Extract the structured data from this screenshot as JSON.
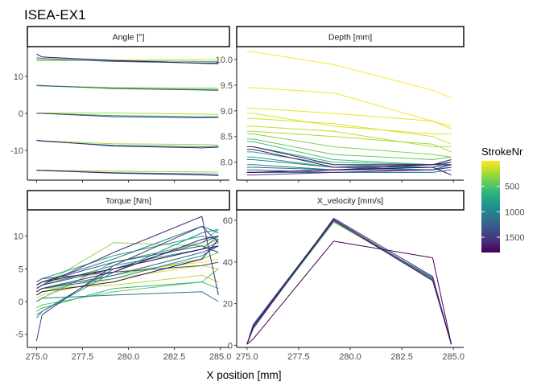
{
  "chart_data": {
    "type": "line",
    "title": "ISEA-EX1",
    "xlabel": "X position [mm]",
    "x_ticks": [
      275.0,
      277.5,
      280.0,
      282.5,
      285.0
    ],
    "x_tick_labels": [
      "275.0",
      "277.5",
      "280.0",
      "282.5",
      "285.0"
    ],
    "xlim": [
      274.5,
      285.5
    ],
    "x_samples": [
      275.0,
      275.3,
      279.2,
      284.0,
      284.9
    ],
    "grid": false,
    "legend": {
      "title": "StrokeNr",
      "position": "right",
      "type": "colorbar",
      "range": [
        1,
        1800
      ],
      "ticks": [
        500,
        1000,
        1500
      ],
      "tick_labels": [
        "500",
        "1000",
        "1500"
      ],
      "colormap": "viridis",
      "reversed": true,
      "colors": [
        "#fde725",
        "#b5de2b",
        "#6ece58",
        "#35b779",
        "#1f9e89",
        "#26828e",
        "#31688e",
        "#3e4989",
        "#482878",
        "#440154"
      ]
    },
    "facets": [
      {
        "strip": "Angle [°]",
        "ylim": [
          -18,
          18
        ],
        "y_ticks": [
          -10,
          0,
          10
        ],
        "y_tick_labels": [
          "-10",
          "0",
          "10"
        ],
        "series": [
          {
            "stroke": 100,
            "y": [
              14.2,
              14.2,
              14.4,
              14.5,
              14.5
            ]
          },
          {
            "stroke": 600,
            "y": [
              14.5,
              14.4,
              14.2,
              14.0,
              14.0
            ]
          },
          {
            "stroke": 1200,
            "y": [
              15.0,
              14.8,
              14.0,
              13.6,
              13.6
            ]
          },
          {
            "stroke": 1750,
            "y": [
              16.0,
              15.2,
              14.3,
              13.5,
              13.4
            ]
          },
          {
            "stroke": 150,
            "y": [
              7.4,
              7.4,
              7.0,
              6.9,
              6.9
            ]
          },
          {
            "stroke": 700,
            "y": [
              7.5,
              7.4,
              6.8,
              6.5,
              6.5
            ]
          },
          {
            "stroke": 1300,
            "y": [
              7.6,
              7.5,
              6.7,
              6.3,
              6.2
            ]
          },
          {
            "stroke": 200,
            "y": [
              0.1,
              0.1,
              0.1,
              -0.2,
              -0.3
            ]
          },
          {
            "stroke": 800,
            "y": [
              0.0,
              0.0,
              -0.6,
              -0.9,
              -0.9
            ]
          },
          {
            "stroke": 1450,
            "y": [
              0.0,
              0.0,
              -0.9,
              -1.2,
              -1.1
            ]
          },
          {
            "stroke": 250,
            "y": [
              -7.3,
              -7.4,
              -8.2,
              -8.4,
              -8.5
            ]
          },
          {
            "stroke": 900,
            "y": [
              -7.3,
              -7.5,
              -8.6,
              -9.0,
              -8.9
            ]
          },
          {
            "stroke": 1600,
            "y": [
              -7.2,
              -7.4,
              -8.8,
              -9.3,
              -9.1
            ]
          },
          {
            "stroke": 300,
            "y": [
              -15.3,
              -15.3,
              -15.6,
              -15.8,
              -15.8
            ]
          },
          {
            "stroke": 1000,
            "y": [
              -15.3,
              -15.4,
              -16.0,
              -16.3,
              -16.4
            ]
          },
          {
            "stroke": 1700,
            "y": [
              -15.3,
              -15.4,
              -16.1,
              -16.6,
              -16.8
            ]
          }
        ]
      },
      {
        "strip": "Depth [mm]",
        "ylim": [
          7.65,
          10.25
        ],
        "y_ticks": [
          8.0,
          8.5,
          9.0,
          9.5,
          10.0
        ],
        "y_tick_labels": [
          "8.0",
          "8.5",
          "9.0",
          "9.5",
          "10.0"
        ],
        "series": [
          {
            "stroke": 10,
            "y": [
              10.15,
              10.15,
              9.9,
              9.4,
              9.25
            ]
          },
          {
            "stroke": 30,
            "y": [
              9.45,
              9.45,
              9.35,
              8.8,
              8.7
            ]
          },
          {
            "stroke": 60,
            "y": [
              9.05,
              9.05,
              8.95,
              8.8,
              8.65
            ]
          },
          {
            "stroke": 90,
            "y": [
              8.95,
              8.95,
              8.7,
              8.55,
              8.55
            ]
          },
          {
            "stroke": 120,
            "y": [
              8.85,
              8.85,
              8.75,
              8.5,
              8.35
            ]
          },
          {
            "stroke": 180,
            "y": [
              8.7,
              8.7,
              8.6,
              8.3,
              8.3
            ]
          },
          {
            "stroke": 250,
            "y": [
              8.6,
              8.6,
              8.5,
              8.35,
              8.2
            ]
          },
          {
            "stroke": 350,
            "y": [
              8.55,
              8.55,
              8.3,
              8.15,
              8.1
            ]
          },
          {
            "stroke": 450,
            "y": [
              8.45,
              8.45,
              8.15,
              8.05,
              8.1
            ]
          },
          {
            "stroke": 550,
            "y": [
              8.4,
              8.4,
              8.05,
              7.95,
              8.05
            ]
          },
          {
            "stroke": 650,
            "y": [
              8.3,
              8.3,
              8.0,
              7.95,
              8.05
            ]
          },
          {
            "stroke": 750,
            "y": [
              8.2,
              8.2,
              7.95,
              7.9,
              8.0
            ]
          },
          {
            "stroke": 850,
            "y": [
              8.1,
              8.1,
              7.9,
              7.9,
              7.95
            ]
          },
          {
            "stroke": 950,
            "y": [
              8.05,
              8.05,
              7.9,
              7.85,
              7.95
            ]
          },
          {
            "stroke": 1050,
            "y": [
              7.95,
              7.95,
              7.85,
              7.85,
              7.9
            ]
          },
          {
            "stroke": 1150,
            "y": [
              7.9,
              7.9,
              7.85,
              7.85,
              7.9
            ]
          },
          {
            "stroke": 1250,
            "y": [
              7.85,
              7.85,
              7.8,
              7.8,
              7.85
            ]
          },
          {
            "stroke": 1350,
            "y": [
              7.8,
              7.8,
              7.8,
              7.85,
              7.9
            ]
          },
          {
            "stroke": 1450,
            "y": [
              7.75,
              7.75,
              7.8,
              7.85,
              7.95
            ]
          },
          {
            "stroke": 1550,
            "y": [
              7.8,
              7.8,
              7.85,
              7.95,
              8.05
            ]
          },
          {
            "stroke": 1650,
            "y": [
              8.3,
              8.3,
              7.95,
              7.95,
              8.0
            ]
          },
          {
            "stroke": 1720,
            "y": [
              8.25,
              8.25,
              7.9,
              7.95,
              7.95
            ]
          },
          {
            "stroke": 1780,
            "y": [
              7.8,
              7.8,
              7.85,
              7.9,
              7.75
            ]
          }
        ]
      },
      {
        "strip": "Torque [Nm]",
        "ylim": [
          -7,
          14
        ],
        "y_ticks": [
          -5,
          0,
          5,
          10
        ],
        "y_tick_labels": [
          "-5",
          "0",
          "5",
          "10"
        ],
        "series": [
          {
            "stroke": 40,
            "y": [
              2.5,
              3.0,
              4.5,
              6.0,
              6.5
            ]
          },
          {
            "stroke": 120,
            "y": [
              0.5,
              1.0,
              3.5,
              5.5,
              5.0
            ]
          },
          {
            "stroke": 200,
            "y": [
              1.5,
              2.0,
              2.5,
              4.0,
              3.0
            ]
          },
          {
            "stroke": 300,
            "y": [
              2.0,
              2.5,
              9.0,
              8.5,
              9.5
            ]
          },
          {
            "stroke": 380,
            "y": [
              1.0,
              1.5,
              4.0,
              6.5,
              7.5
            ]
          },
          {
            "stroke": 450,
            "y": [
              -1.0,
              -0.5,
              1.5,
              3.0,
              5.0
            ]
          },
          {
            "stroke": 530,
            "y": [
              0.0,
              0.5,
              6.0,
              9.0,
              11.0
            ]
          },
          {
            "stroke": 600,
            "y": [
              -1.5,
              -1.0,
              2.0,
              3.0,
              2.0
            ]
          },
          {
            "stroke": 680,
            "y": [
              2.0,
              2.5,
              5.5,
              8.0,
              9.0
            ]
          },
          {
            "stroke": 750,
            "y": [
              3.0,
              3.5,
              7.0,
              10.0,
              9.5
            ]
          },
          {
            "stroke": 830,
            "y": [
              -2.0,
              -1.5,
              4.5,
              10.5,
              11.0
            ]
          },
          {
            "stroke": 900,
            "y": [
              1.5,
              2.0,
              3.5,
              7.0,
              8.5
            ]
          },
          {
            "stroke": 980,
            "y": [
              -2.5,
              -1.5,
              5.0,
              8.0,
              10.0
            ]
          },
          {
            "stroke": 1050,
            "y": [
              2.5,
              3.0,
              6.5,
              11.5,
              10.5
            ]
          },
          {
            "stroke": 1130,
            "y": [
              0.0,
              0.5,
              1.0,
              1.5,
              0.0
            ]
          },
          {
            "stroke": 1200,
            "y": [
              2.0,
              2.5,
              5.0,
              9.0,
              10.0
            ]
          },
          {
            "stroke": 1280,
            "y": [
              1.5,
              2.0,
              4.0,
              7.5,
              8.5
            ]
          },
          {
            "stroke": 1350,
            "y": [
              3.0,
              3.5,
              4.5,
              5.5,
              6.0
            ]
          },
          {
            "stroke": 1430,
            "y": [
              2.5,
              3.0,
              6.0,
              8.5,
              7.5
            ]
          },
          {
            "stroke": 1500,
            "y": [
              -6.0,
              -2.0,
              5.5,
              11.5,
              9.0
            ]
          },
          {
            "stroke": 1580,
            "y": [
              2.0,
              2.5,
              7.5,
              13.0,
              1.0
            ]
          },
          {
            "stroke": 1650,
            "y": [
              1.5,
              2.0,
              4.5,
              9.5,
              10.0
            ]
          },
          {
            "stroke": 1720,
            "y": [
              2.5,
              3.0,
              5.0,
              8.0,
              8.5
            ]
          },
          {
            "stroke": 1790,
            "y": [
              1.0,
              1.5,
              3.0,
              6.5,
              9.5
            ]
          }
        ]
      },
      {
        "strip": "X_velocity [mm/s]",
        "ylim": [
          -1,
          65
        ],
        "y_ticks": [
          0,
          20,
          40,
          60
        ],
        "y_tick_labels": [
          "0",
          "20",
          "40",
          "60"
        ],
        "series": [
          {
            "stroke": 300,
            "y": [
              0.5,
              9.0,
              59.0,
              32.0,
              0.5
            ]
          },
          {
            "stroke": 700,
            "y": [
              0.5,
              8.5,
              59.5,
              32.5,
              0.5
            ]
          },
          {
            "stroke": 1100,
            "y": [
              0.5,
              9.5,
              60.0,
              31.5,
              0.5
            ]
          },
          {
            "stroke": 1400,
            "y": [
              0.5,
              10.0,
              60.5,
              32.0,
              0.5
            ]
          },
          {
            "stroke": 1600,
            "y": [
              0.5,
              8.0,
              61.0,
              33.0,
              0.5
            ]
          },
          {
            "stroke": 1750,
            "y": [
              0.5,
              9.0,
              60.0,
              31.0,
              0.5
            ]
          },
          {
            "stroke": 1800,
            "y": [
              0.5,
              3.0,
              50.0,
              42.0,
              0.5
            ]
          }
        ]
      }
    ]
  }
}
